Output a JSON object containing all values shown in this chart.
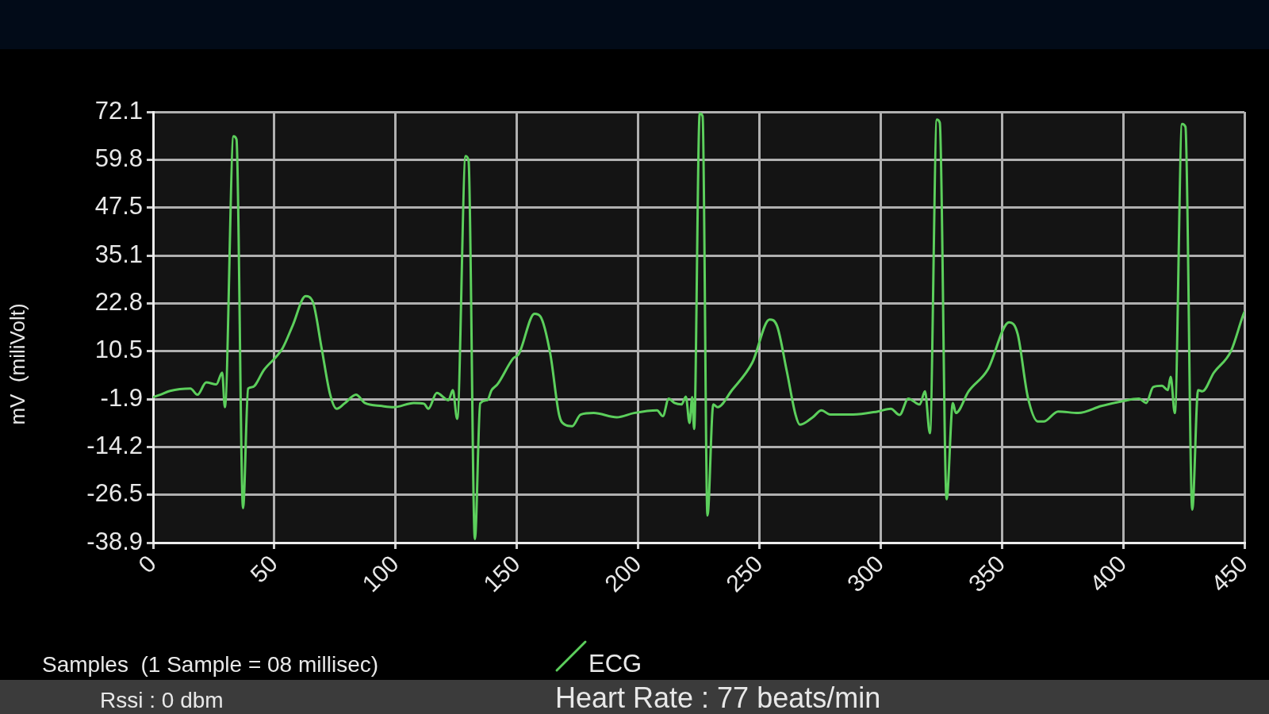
{
  "chart_data": {
    "type": "line",
    "xlabel": "Samples  (1 Sample = 08 millisec)",
    "ylabel": "mV  (miliVolt)",
    "x": [
      0,
      2.9,
      7.0,
      15.4,
      18.3,
      21.9,
      26.1,
      28.5,
      29.6,
      33.2,
      34.4,
      37.1,
      39.2,
      41.0,
      45.7,
      53.4,
      57.6,
      62.9,
      65.9,
      69.5,
      73.0,
      75.7,
      79.0,
      83.7,
      87.3,
      94.4,
      99.2,
      107.5,
      111.7,
      113.5,
      117.0,
      121.8,
      123.6,
      125.4,
      128.9,
      130.1,
      132.7,
      134.9,
      137.8,
      139.6,
      142.0,
      148.5,
      150.8,
      157.3,
      159.7,
      163.8,
      167.4,
      169.8,
      172.8,
      176.3,
      181.7,
      191.2,
      198.3,
      207.8,
      210.2,
      212.6,
      215.0,
      217.9,
      219.7,
      221.2,
      222.3,
      223.1,
      225.4,
      226.6,
      228.6,
      231.0,
      232.8,
      238.7,
      247.1,
      254.2,
      257.2,
      261.3,
      264.9,
      266.7,
      272.0,
      275.6,
      279.2,
      288.7,
      298.8,
      304.2,
      307.8,
      311.4,
      316.1,
      318.3,
      320.3,
      323.2,
      324.4,
      327.2,
      329.8,
      331.0,
      336.3,
      344.1,
      353.0,
      356.5,
      360.7,
      364.9,
      367.2,
      373.2,
      381.5,
      391.0,
      399.3,
      406.5,
      409.5,
      412.4,
      416.0,
      418.4,
      419.6,
      421.3,
      424.3,
      425.7,
      428.5,
      430.9,
      432.7,
      437.4,
      444.5,
      449.3,
      450
    ],
    "series": [
      {
        "name": "ECG",
        "color": "#5ccf5c",
        "values": [
          -1.4,
          -0.8,
          0.2,
          0.8,
          -0.8,
          2.4,
          1.9,
          4.9,
          -4.0,
          65.8,
          65.0,
          -30.0,
          0.8,
          1.2,
          5.6,
          11.2,
          17.1,
          24.6,
          23.1,
          11.2,
          -0.7,
          -4.4,
          -3.0,
          -0.8,
          -2.9,
          -3.7,
          -4.0,
          -2.9,
          -3.1,
          -4.4,
          -0.3,
          -2.2,
          0.4,
          -7.0,
          60.7,
          59.5,
          -38.0,
          -3.0,
          -2.2,
          0.4,
          1.9,
          8.6,
          9.7,
          20.1,
          19.4,
          9.7,
          -5.9,
          -8.5,
          -8.9,
          -5.9,
          -5.5,
          -6.6,
          -5.5,
          -4.8,
          -6.3,
          -1.8,
          -2.9,
          -3.3,
          -1.3,
          -8.1,
          -1.4,
          -9.6,
          71.7,
          71.0,
          -31.9,
          -3.3,
          -4.0,
          0.4,
          7.5,
          18.6,
          17.1,
          5.3,
          -5.9,
          -8.5,
          -6.6,
          -4.8,
          -5.9,
          -5.9,
          -5.1,
          -4.4,
          -6.0,
          -1.8,
          -3.3,
          0.1,
          -10.7,
          70.1,
          69.3,
          -27.7,
          -2.9,
          -5.5,
          0.1,
          5.6,
          17.9,
          14.9,
          -1.4,
          -7.7,
          -7.7,
          -5.1,
          -5.5,
          -3.7,
          -2.5,
          -1.8,
          -2.9,
          1.2,
          1.5,
          0.4,
          3.8,
          -5.5,
          69.0,
          68.2,
          -30.4,
          0.4,
          0.1,
          4.9,
          10.5,
          19.4,
          20.5
        ]
      }
    ],
    "xlim": [
      0,
      450
    ],
    "xticks": [
      0,
      50,
      100,
      150,
      200,
      250,
      300,
      350,
      400,
      450
    ],
    "ylim": [
      -38.9,
      72.1
    ],
    "yticks": [
      -38.9,
      -26.5,
      -14.2,
      -1.9,
      10.5,
      22.8,
      35.1,
      47.5,
      59.8,
      72.1
    ],
    "grid": true,
    "legend": "bottom",
    "marker": "none",
    "line_style": "solid",
    "annotations": [
      "Rssi : 0 dbm",
      "Heart Rate : 77 beats/min"
    ]
  }
}
